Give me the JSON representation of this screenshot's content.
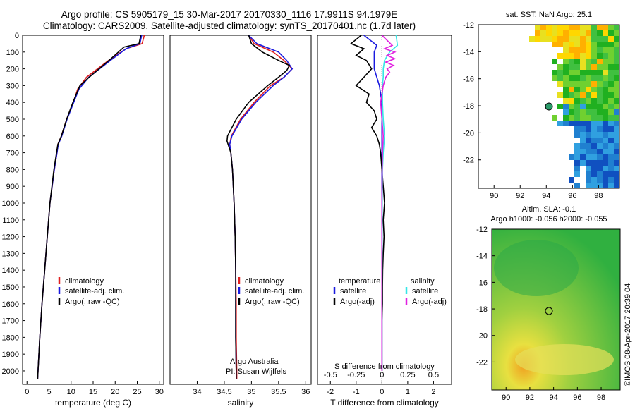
{
  "header": {
    "line1": "Argo profile: CS 5905179_15 30-Mar-2017 20170330_1116 17.9911S 94.1979E",
    "line2": "Climatology: CARS2009. Satellite-adjusted climatology: synTS_20170401.nc (1.7d later)"
  },
  "colors": {
    "climatology": "#e02020",
    "satellite": "#1a1adf",
    "argo": "#000000",
    "sat_salinity": "#35e6e6",
    "argo_salinity_adj": "#e020e0"
  },
  "chart_data": [
    {
      "type": "line",
      "xlabel": "temperature (deg C)",
      "ylabel": "",
      "xlim": [
        -1,
        31
      ],
      "ylim": [
        2080,
        0
      ],
      "xticks": [
        0,
        5,
        10,
        15,
        20,
        25,
        30
      ],
      "yticks": [
        0,
        100,
        200,
        300,
        400,
        500,
        600,
        700,
        800,
        900,
        1000,
        1100,
        1200,
        1300,
        1400,
        1500,
        1600,
        1700,
        1800,
        1900,
        2000
      ],
      "legend": [
        "climatology",
        "satellite-adj. clim.",
        "Argo(..raw -QC)"
      ],
      "series": [
        {
          "name": "climatology",
          "y": [
            0,
            50,
            80,
            150,
            250,
            320,
            400,
            500,
            600,
            650,
            700,
            800,
            1000,
            1200,
            1400,
            1600,
            1800,
            2000,
            2050
          ],
          "x": [
            26.6,
            26.1,
            22.5,
            18.5,
            13.5,
            11.5,
            10.5,
            9.0,
            7.8,
            7.0,
            6.8,
            6.2,
            5.2,
            4.6,
            4.0,
            3.4,
            2.9,
            2.5,
            2.4
          ]
        },
        {
          "name": "satellite-adj. clim.",
          "y": [
            0,
            50,
            80,
            150,
            250,
            320,
            400,
            500,
            600,
            650,
            700,
            800,
            1000,
            1200,
            1400,
            1600,
            1800,
            2000,
            2050
          ],
          "x": [
            26.0,
            25.6,
            22.5,
            18.9,
            14.0,
            11.8,
            10.6,
            9.1,
            7.9,
            7.1,
            6.8,
            6.2,
            5.2,
            4.6,
            4.0,
            3.4,
            2.9,
            2.5,
            2.4
          ]
        },
        {
          "name": "Argo(..raw -QC)",
          "y": [
            0,
            50,
            70,
            150,
            250,
            300,
            400,
            500,
            600,
            650,
            700,
            800,
            1000,
            1200,
            1400,
            1600,
            1800,
            2000,
            2050
          ],
          "x": [
            25.8,
            25.4,
            22.0,
            18.6,
            14.1,
            12.0,
            10.4,
            9.0,
            7.8,
            7.0,
            6.7,
            6.1,
            5.2,
            4.6,
            4.0,
            3.4,
            2.9,
            2.5,
            2.4
          ]
        }
      ]
    },
    {
      "type": "line",
      "xlabel": "salinity",
      "xlim": [
        33.5,
        36.1
      ],
      "ylim": [
        2080,
        0
      ],
      "xticks": [
        34,
        34.5,
        35,
        35.5,
        36
      ],
      "legend": [
        "climatology",
        "satellite-adj. clim.",
        "Argo(..raw -QC)"
      ],
      "annotations": [
        "Argo Australia",
        "PI: Susan Wijffels"
      ],
      "series": [
        {
          "name": "climatology",
          "y": [
            0,
            50,
            100,
            150,
            200,
            250,
            300,
            400,
            500,
            600,
            650,
            700,
            800,
            1000,
            1200,
            1400,
            1600,
            1800,
            2000,
            2050
          ],
          "x": [
            34.95,
            35.05,
            35.4,
            35.6,
            35.75,
            35.6,
            35.35,
            35.05,
            34.8,
            34.63,
            34.6,
            34.62,
            34.65,
            34.68,
            34.7,
            34.71,
            34.72,
            34.72,
            34.73,
            34.73
          ]
        },
        {
          "name": "satellite-adj. clim.",
          "y": [
            0,
            50,
            100,
            150,
            200,
            250,
            300,
            400,
            500,
            600,
            650,
            700,
            800,
            1000,
            1200,
            1400,
            1600,
            1800,
            2000,
            2050
          ],
          "x": [
            34.95,
            35.1,
            35.5,
            35.65,
            35.75,
            35.6,
            35.4,
            35.08,
            34.82,
            34.64,
            34.6,
            34.62,
            34.65,
            34.68,
            34.7,
            34.71,
            34.71,
            34.71,
            34.72,
            34.72
          ]
        },
        {
          "name": "Argo(..raw -QC)",
          "y": [
            0,
            50,
            100,
            150,
            180,
            210,
            250,
            300,
            400,
            500,
            600,
            630,
            660,
            700,
            800,
            1000,
            1200,
            1400,
            1600,
            1800,
            2000,
            2050
          ],
          "x": [
            34.95,
            35.0,
            35.2,
            35.5,
            35.7,
            35.65,
            35.5,
            35.3,
            34.95,
            34.72,
            34.56,
            34.55,
            34.58,
            34.62,
            34.65,
            34.68,
            34.7,
            34.71,
            34.71,
            34.71,
            34.72,
            34.72
          ]
        }
      ]
    },
    {
      "type": "line",
      "xlabel": "T difference from climatology",
      "x2label": "S difference from climatology",
      "xlim": [
        -2.5,
        2.7
      ],
      "ylim": [
        2080,
        0
      ],
      "xticks": [
        -2,
        -1,
        0,
        1,
        2
      ],
      "x2ticks": [
        -0.5,
        -0.25,
        0,
        0.25,
        0.5
      ],
      "legend": [
        "temperature",
        "satellite",
        "Argo(-adj)",
        "salinity",
        "satellite",
        "Argo(-adj)"
      ],
      "series": [
        {
          "name": "satellite",
          "y": [
            0,
            60,
            100,
            200,
            300,
            400,
            500,
            600,
            700,
            800,
            1000,
            1200,
            1500,
            2000
          ],
          "x": [
            -0.7,
            -0.2,
            -0.3,
            -0.3,
            -0.1,
            0.0,
            0.0,
            0.0,
            0.0,
            0.0,
            0.0,
            0.0,
            0.0,
            0.0
          ]
        },
        {
          "name": "Argo(-adj)",
          "y": [
            0,
            50,
            80,
            120,
            150,
            200,
            250,
            300,
            350,
            400,
            450,
            500,
            550,
            600,
            650,
            700,
            800,
            900,
            1000,
            1100,
            1200,
            1300,
            1400,
            1500,
            1600,
            1700,
            1800,
            1900,
            2000
          ],
          "x": [
            -0.8,
            -1.2,
            -0.7,
            -1.0,
            -0.6,
            -0.4,
            -0.7,
            -1.0,
            -0.5,
            -0.6,
            -0.3,
            -0.2,
            -0.4,
            -0.2,
            -0.1,
            -0.05,
            0.0,
            0.05,
            0.1,
            0.05,
            0.08,
            0.05,
            0.03,
            0.02,
            0.02,
            0.0,
            0.0,
            0.0,
            0.0
          ]
        },
        {
          "name": "satellite",
          "y": [
            0,
            60,
            100,
            150,
            200,
            250,
            300,
            400,
            500,
            600,
            700,
            800,
            1000,
            1500,
            2000
          ],
          "x": [
            0.55,
            0.6,
            0.3,
            0.1,
            0.05,
            0.05,
            0.02,
            0.02,
            0.05,
            0.1,
            0.05,
            0.02,
            0.01,
            0.0,
            0.0
          ]
        },
        {
          "name": "Argo(-adj)",
          "y": [
            0,
            60,
            80,
            100,
            120,
            140,
            160,
            180,
            200,
            220,
            250,
            300,
            400,
            500,
            600,
            700,
            800,
            1000,
            2000
          ],
          "x": [
            0.0,
            0.4,
            0.1,
            0.5,
            0.2,
            0.5,
            0.15,
            0.45,
            0.2,
            0.3,
            0.15,
            0.05,
            -0.05,
            0.0,
            0.05,
            0.02,
            0.01,
            0.0,
            0.0
          ]
        }
      ]
    }
  ],
  "maps": {
    "sst": {
      "title": "sat. SST: NaN Argo: 25.1",
      "xticks": [
        "90",
        "92",
        "94",
        "96",
        "98"
      ],
      "yticks": [
        "-12",
        "-14",
        "-16",
        "-18",
        "-20",
        "-22"
      ]
    },
    "sla": {
      "title1": "Altim. SLA: -0.1",
      "title2": "Argo h1000: -0.056 h2000: -0.055",
      "xticks": [
        "90",
        "92",
        "94",
        "96",
        "98"
      ],
      "yticks": [
        "-12",
        "-14",
        "-16",
        "-18",
        "-20",
        "-22"
      ]
    }
  },
  "credit": "©IMOS 08-Apr-2017 20:39:04"
}
